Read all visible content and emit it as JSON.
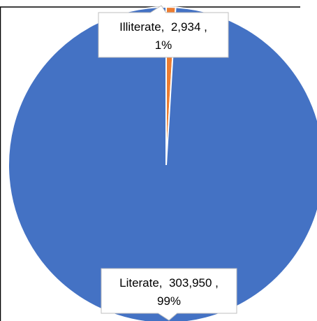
{
  "colors": {
    "literate": "#4472C4",
    "illiterate": "#ED7D31",
    "slice_border": "#ffffff",
    "frame": "#000000",
    "callout_fill": "#ffffff",
    "callout_stroke": "#bfbfbf"
  },
  "chart_data": {
    "type": "pie",
    "categories": [
      "Illiterate",
      "Literate"
    ],
    "values": [
      2934,
      303950
    ],
    "percents": [
      "1%",
      "99%"
    ],
    "data_labels": [
      {
        "line1": "Illiterate,  2,934 ,",
        "line2": "1%"
      },
      {
        "line1": "Literate,  303,950 ,",
        "line2": "99%"
      }
    ],
    "start_angle_deg": 0,
    "direction": "clockwise",
    "legend": "none"
  }
}
